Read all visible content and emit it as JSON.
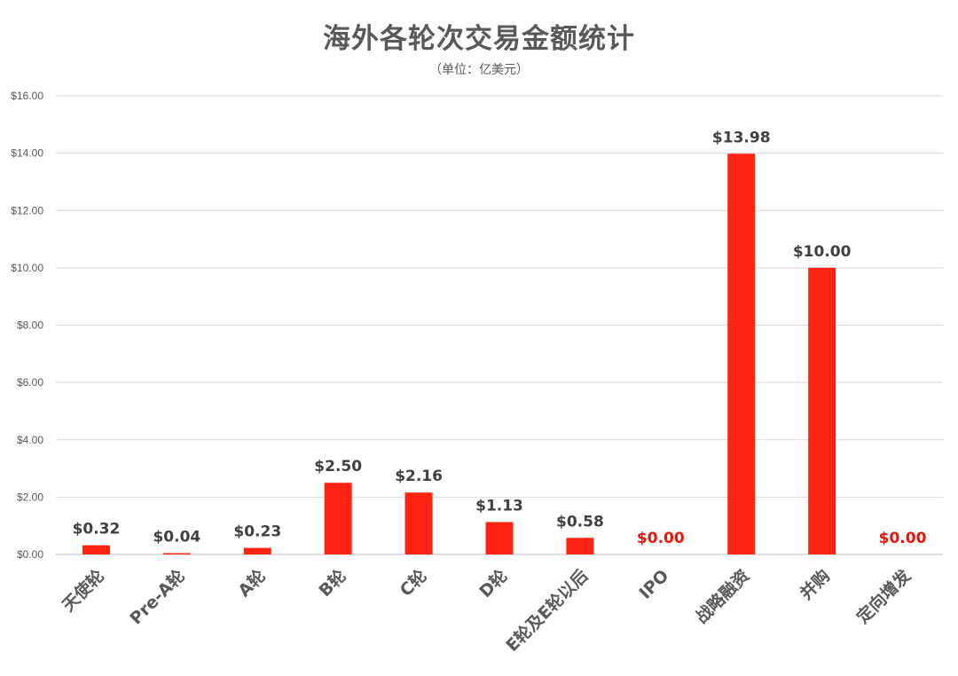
{
  "chart_data": {
    "type": "bar",
    "title": "海外各轮次交易金额统计",
    "subtitle": "（单位：亿美元）",
    "categories": [
      "天使轮",
      "Pre-A轮",
      "A轮",
      "B轮",
      "C轮",
      "D轮",
      "E轮及E轮以后",
      "IPO",
      "战略融资",
      "并购",
      "定向增发"
    ],
    "values": [
      0.32,
      0.04,
      0.23,
      2.5,
      2.16,
      1.13,
      0.58,
      0.0,
      13.98,
      10.0,
      0.0
    ],
    "data_labels": [
      "$0.32",
      "$0.04",
      "$0.23",
      "$2.50",
      "$2.16",
      "$1.13",
      "$0.58",
      "$0.00",
      "$13.98",
      "$10.00",
      "$0.00"
    ],
    "ylim": [
      0,
      16
    ],
    "yticks": [
      "$0.00",
      "$2.00",
      "$4.00",
      "$6.00",
      "$8.00",
      "$10.00",
      "$12.00",
      "$14.00",
      "$16.00"
    ],
    "grid": true,
    "colors": {
      "bar": "#ff2311",
      "label": "#404040",
      "zero_label": "#e8160a",
      "grid": "#d9d9d9",
      "text": "#595959"
    }
  }
}
